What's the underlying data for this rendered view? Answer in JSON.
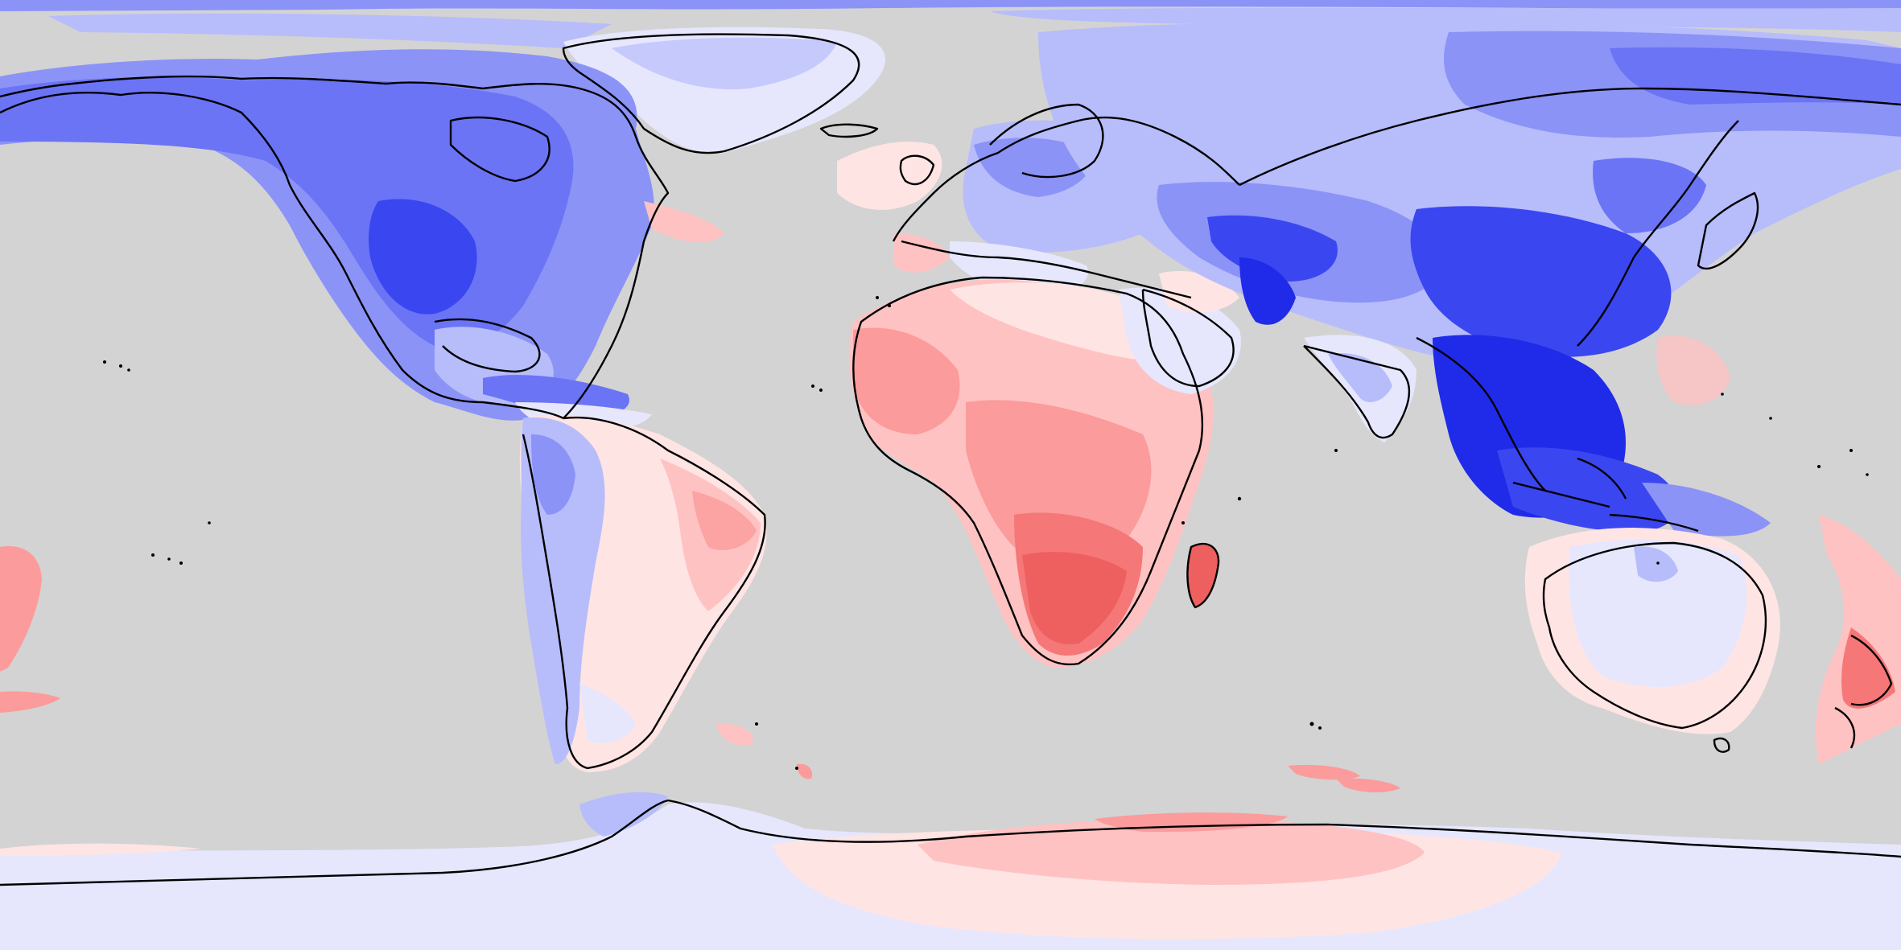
{
  "map": {
    "projection": "equirectangular",
    "background_color": "#d3d3d3",
    "coastline_color": "#000000",
    "palette": {
      "blue_strong": "#1f2be8",
      "blue_dark": "#3a46f0",
      "blue_mid": "#6a74f5",
      "blue": "#8b93f7",
      "blue_light": "#b7bcfb",
      "blue_pale": "#e6e7fd",
      "red_pale": "#ffe4e4",
      "red_light": "#ffc2c2",
      "red_mid": "#fb9b9b",
      "red": "#f57777",
      "red_strong": "#ee5f5f"
    },
    "regions": [
      "arctic-sea-band",
      "greenland",
      "north-america",
      "south-america",
      "europe",
      "africa",
      "madagascar",
      "middle-east",
      "asia",
      "india",
      "southeast-asia",
      "australia",
      "new-zealand",
      "antarctica"
    ]
  }
}
